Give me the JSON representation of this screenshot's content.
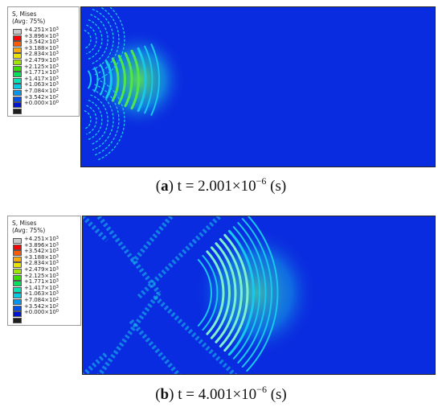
{
  "panels": [
    {
      "label": "a",
      "caption_text": "t = 2.001×10",
      "caption_exp": "−6",
      "caption_unit": "(s)",
      "legend": {
        "title_line1": "S, Mises",
        "title_line2": "(Avg: 75%)",
        "entries": [
          {
            "mantissa": "+4.251×10",
            "exp": "3",
            "color": "#c8c8c8"
          },
          {
            "mantissa": "+3.896×10",
            "exp": "3",
            "color": "#ff0000"
          },
          {
            "mantissa": "+3.542×10",
            "exp": "3",
            "color": "#ff5a00"
          },
          {
            "mantissa": "+3.188×10",
            "exp": "3",
            "color": "#ffaa00"
          },
          {
            "mantissa": "+2.834×10",
            "exp": "3",
            "color": "#e8e400"
          },
          {
            "mantissa": "+2.479×10",
            "exp": "3",
            "color": "#9ee600"
          },
          {
            "mantissa": "+2.125×10",
            "exp": "3",
            "color": "#38e000"
          },
          {
            "mantissa": "+1.771×10",
            "exp": "3",
            "color": "#00e25a"
          },
          {
            "mantissa": "+1.417×10",
            "exp": "3",
            "color": "#00e6b4"
          },
          {
            "mantissa": "+1.063×10",
            "exp": "3",
            "color": "#00cce6"
          },
          {
            "mantissa": "+7.084×10",
            "exp": "2",
            "color": "#0096f0"
          },
          {
            "mantissa": "+3.542×10",
            "exp": "2",
            "color": "#0050f0"
          },
          {
            "mantissa": "+0.000×10",
            "exp": "0",
            "color": "#0014d8"
          }
        ],
        "bottom_color": "#1e1e1e"
      }
    },
    {
      "label": "b",
      "caption_text": "t = 4.001×10",
      "caption_exp": "−6",
      "caption_unit": "(s)",
      "legend": {
        "title_line1": "S, Mises",
        "title_line2": "(Avg: 75%)",
        "entries": [
          {
            "mantissa": "+4.251×10",
            "exp": "3",
            "color": "#c8c8c8"
          },
          {
            "mantissa": "+3.896×10",
            "exp": "3",
            "color": "#ff0000"
          },
          {
            "mantissa": "+3.542×10",
            "exp": "3",
            "color": "#ff5a00"
          },
          {
            "mantissa": "+3.188×10",
            "exp": "3",
            "color": "#ffaa00"
          },
          {
            "mantissa": "+2.834×10",
            "exp": "3",
            "color": "#e8e400"
          },
          {
            "mantissa": "+2.479×10",
            "exp": "3",
            "color": "#9ee600"
          },
          {
            "mantissa": "+2.125×10",
            "exp": "3",
            "color": "#38e000"
          },
          {
            "mantissa": "+1.771×10",
            "exp": "3",
            "color": "#00e25a"
          },
          {
            "mantissa": "+1.417×10",
            "exp": "3",
            "color": "#00e6b4"
          },
          {
            "mantissa": "+1.063×10",
            "exp": "3",
            "color": "#00cce6"
          },
          {
            "mantissa": "+7.084×10",
            "exp": "2",
            "color": "#0096f0"
          },
          {
            "mantissa": "+3.542×10",
            "exp": "2",
            "color": "#0050f0"
          },
          {
            "mantissa": "+0.000×10",
            "exp": "0",
            "color": "#0014d8"
          }
        ],
        "bottom_color": "#1e1e1e"
      }
    }
  ],
  "colors": {
    "field_background": "#0a2ce0",
    "wave_cyan": "#19c8ea",
    "wave_green": "#4fe84a",
    "wave_light": "#7df0d0"
  }
}
